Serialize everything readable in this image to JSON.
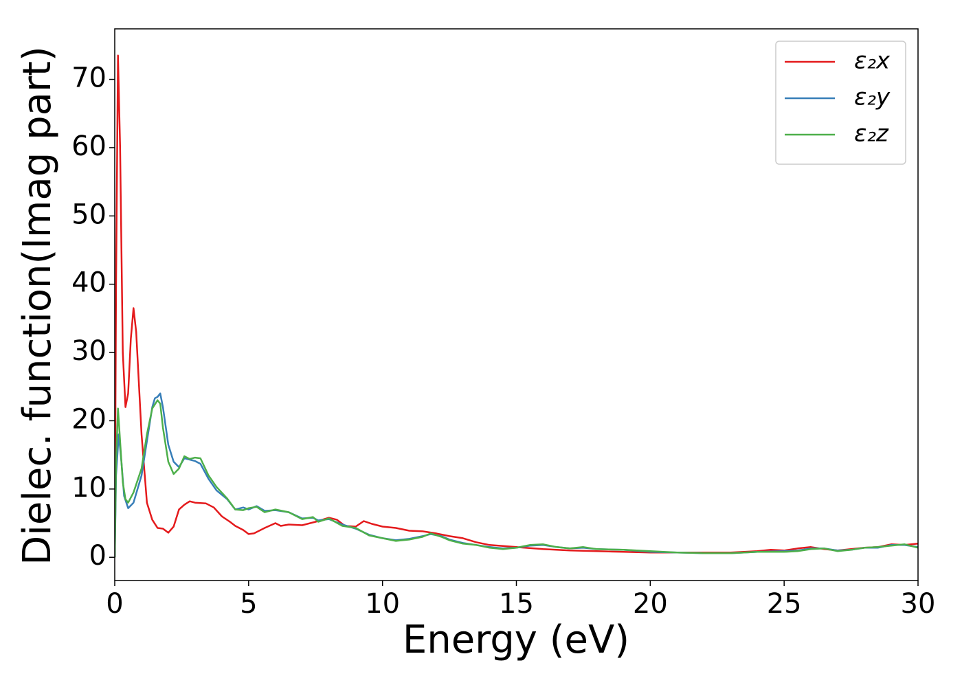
{
  "chart_data": {
    "type": "line",
    "xlabel": "Energy (eV)",
    "ylabel": "Dielec. function(Imag part)",
    "xlim": [
      0,
      30
    ],
    "ylim": [
      -3.4,
      77.4
    ],
    "xticks": [
      0,
      5,
      10,
      15,
      20,
      25,
      30
    ],
    "yticks": [
      0,
      10,
      20,
      30,
      40,
      50,
      60,
      70
    ],
    "grid": false,
    "legend": "upper right",
    "series": [
      {
        "name": "ε₂x",
        "color": "#e41a1c",
        "x": [
          0,
          0.05,
          0.12,
          0.2,
          0.3,
          0.4,
          0.5,
          0.6,
          0.7,
          0.8,
          1.0,
          1.2,
          1.4,
          1.6,
          1.8,
          2.0,
          2.2,
          2.4,
          2.6,
          2.8,
          3.0,
          3.4,
          3.7,
          4.0,
          4.3,
          4.5,
          4.8,
          5.0,
          5.2,
          5.6,
          6.0,
          6.2,
          6.5,
          7.0,
          7.5,
          8.0,
          8.3,
          8.6,
          9.0,
          9.3,
          9.6,
          10,
          10.5,
          11,
          11.5,
          12,
          12.5,
          13,
          13.5,
          14,
          15,
          16,
          17,
          18,
          19,
          20,
          21,
          22,
          23,
          24,
          24.5,
          25,
          25.5,
          26,
          26.5,
          27,
          27.5,
          28,
          28.5,
          29,
          29.5,
          30
        ],
        "values": [
          0,
          40,
          73.5,
          60,
          30,
          22,
          24,
          32,
          36.5,
          33,
          18,
          8,
          5.5,
          4.3,
          4.2,
          3.6,
          4.5,
          7,
          7.7,
          8.2,
          8,
          7.9,
          7.3,
          6,
          5.2,
          4.6,
          4,
          3.4,
          3.5,
          4.3,
          5,
          4.6,
          4.8,
          4.7,
          5.2,
          5.8,
          5.5,
          4.6,
          4.5,
          5.3,
          4.9,
          4.5,
          4.3,
          3.9,
          3.8,
          3.5,
          3.1,
          2.8,
          2.2,
          1.8,
          1.5,
          1.2,
          1.0,
          0.9,
          0.8,
          0.7,
          0.7,
          0.7,
          0.7,
          0.9,
          1.1,
          1.0,
          1.3,
          1.5,
          1.2,
          1.0,
          1.2,
          1.4,
          1.5,
          1.9,
          1.8,
          2.0
        ]
      },
      {
        "name": "ε₂y",
        "color": "#377eb8",
        "x": [
          0,
          0.05,
          0.15,
          0.25,
          0.35,
          0.5,
          0.7,
          1.0,
          1.2,
          1.4,
          1.5,
          1.6,
          1.7,
          1.8,
          2.0,
          2.2,
          2.4,
          2.6,
          2.8,
          3.0,
          3.2,
          3.5,
          3.8,
          4.2,
          4.5,
          4.8,
          5.0,
          5.3,
          5.6,
          6.0,
          6.5,
          7.0,
          7.4,
          7.6,
          8.0,
          8.5,
          9,
          9.5,
          10,
          10.5,
          11,
          11.5,
          11.8,
          12.2,
          12.5,
          13,
          13.5,
          14,
          14.5,
          15,
          15.5,
          16,
          16.5,
          17,
          17.5,
          18,
          19,
          20,
          21,
          22,
          23,
          24,
          25,
          25.5,
          26,
          26.5,
          27,
          27.5,
          28,
          28.5,
          29,
          29.5,
          30
        ],
        "values": [
          0,
          12,
          18,
          14,
          9,
          7.2,
          8,
          12,
          17,
          22,
          23.3,
          23.5,
          24,
          22,
          16.5,
          14,
          13.2,
          14.5,
          14.3,
          14.1,
          13.7,
          11.5,
          9.8,
          8.5,
          7,
          7.3,
          7,
          7.5,
          6.8,
          6.9,
          6.6,
          5.7,
          5.8,
          5.4,
          5.6,
          4.8,
          4.2,
          3.3,
          2.8,
          2.5,
          2.7,
          3.1,
          3.4,
          3.1,
          2.6,
          2.1,
          1.8,
          1.5,
          1.3,
          1.4,
          1.7,
          1.8,
          1.5,
          1.3,
          1.4,
          1.2,
          1.1,
          0.8,
          0.7,
          0.6,
          0.6,
          0.8,
          0.9,
          1.0,
          1.3,
          1.3,
          1.0,
          1.1,
          1.4,
          1.4,
          1.8,
          1.8,
          1.5
        ]
      },
      {
        "name": "ε₂z",
        "color": "#4daf4a",
        "x": [
          0,
          0.05,
          0.12,
          0.2,
          0.3,
          0.4,
          0.5,
          0.7,
          1.0,
          1.2,
          1.4,
          1.6,
          1.7,
          1.8,
          2.0,
          2.2,
          2.4,
          2.6,
          2.8,
          3.0,
          3.2,
          3.5,
          3.8,
          4.2,
          4.5,
          4.8,
          5.0,
          5.3,
          5.6,
          6.0,
          6.5,
          7.0,
          7.4,
          7.6,
          8.0,
          8.5,
          9,
          9.5,
          10,
          10.5,
          11,
          11.5,
          11.8,
          12.2,
          12.5,
          13,
          13.5,
          14,
          14.5,
          15,
          15.5,
          16,
          16.5,
          17,
          17.5,
          18,
          19,
          20,
          21,
          22,
          23,
          24,
          25,
          25.5,
          26,
          26.5,
          27,
          27.5,
          28,
          28.5,
          29,
          29.5,
          30
        ],
        "values": [
          0,
          14,
          21.8,
          17,
          11,
          8.5,
          8,
          9.5,
          13,
          18,
          21.8,
          23,
          22.5,
          19,
          14,
          12.2,
          13,
          14.8,
          14.4,
          14.6,
          14.5,
          12,
          10.3,
          8.6,
          7,
          6.9,
          7.2,
          7.4,
          6.6,
          7.0,
          6.6,
          5.6,
          5.9,
          5.2,
          5.7,
          4.6,
          4.3,
          3.2,
          2.8,
          2.4,
          2.6,
          3.0,
          3.5,
          3.0,
          2.5,
          2.0,
          1.8,
          1.4,
          1.2,
          1.4,
          1.8,
          1.9,
          1.5,
          1.3,
          1.5,
          1.2,
          1.1,
          0.9,
          0.7,
          0.6,
          0.6,
          0.8,
          0.8,
          0.9,
          1.2,
          1.3,
          0.9,
          1.1,
          1.4,
          1.5,
          1.7,
          1.9,
          1.4
        ]
      }
    ]
  }
}
